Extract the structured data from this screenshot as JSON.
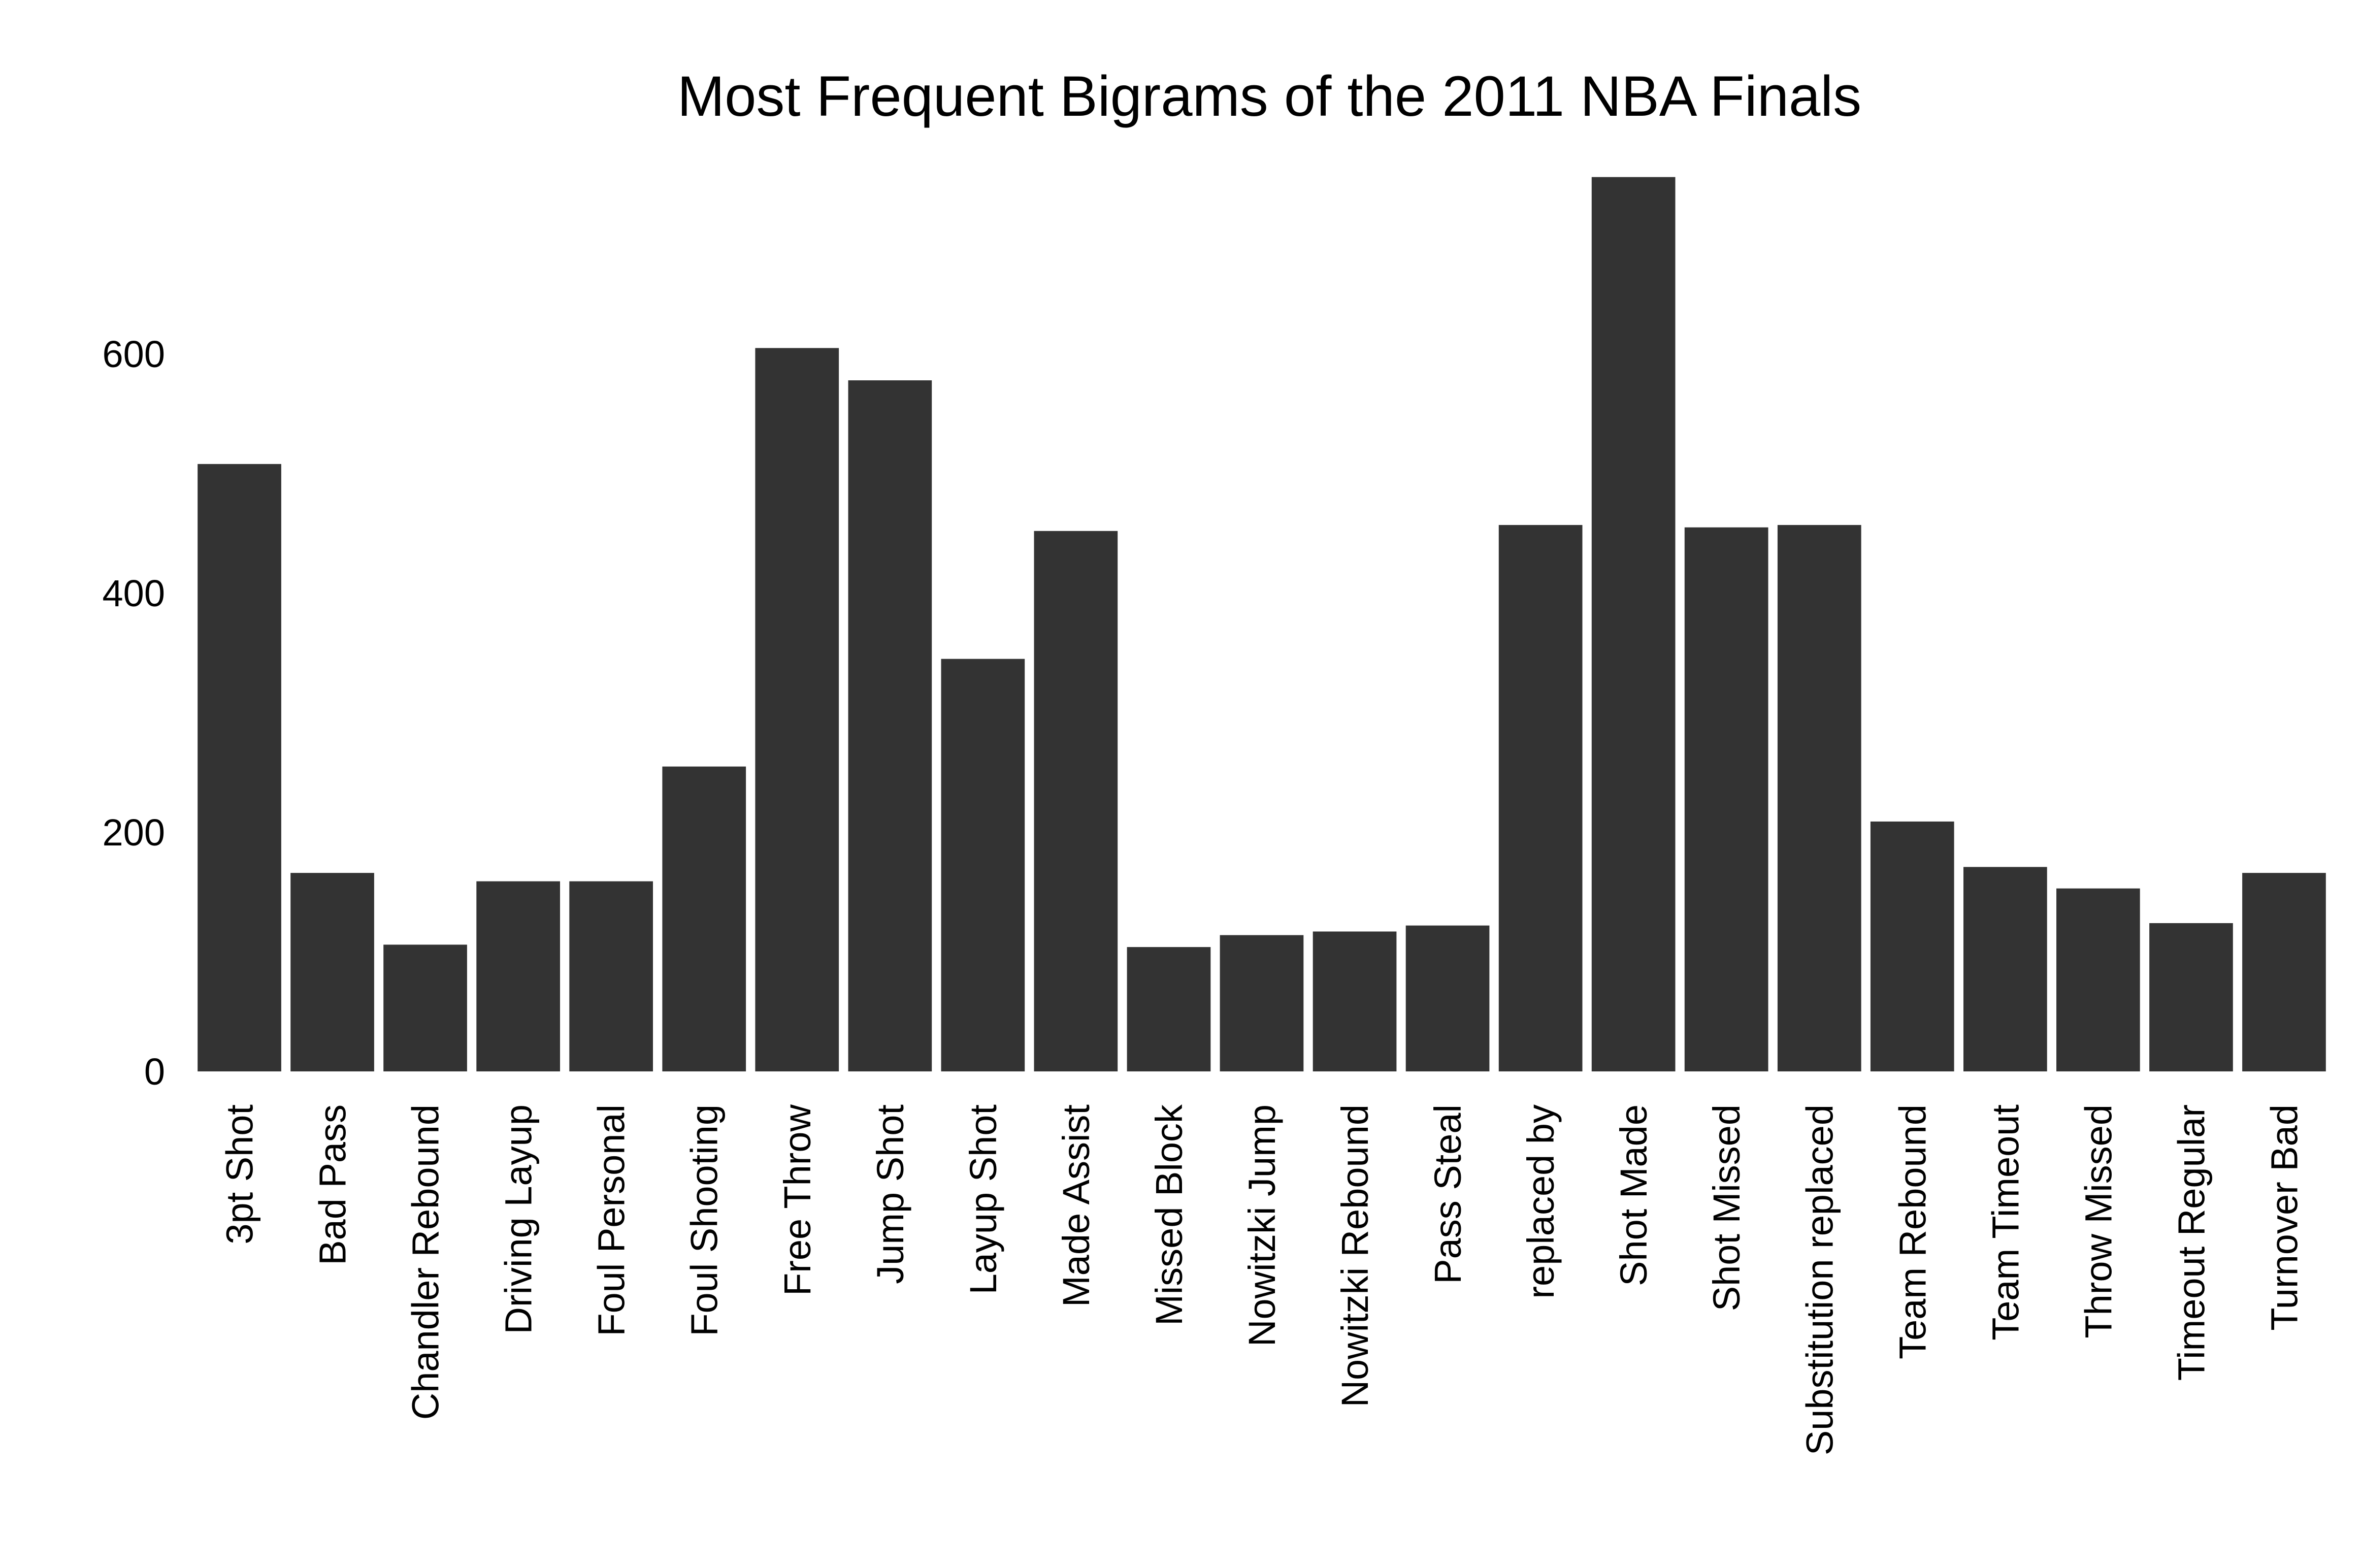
{
  "colors": {
    "background": "#ffffff",
    "bar": "#333333",
    "text": "#000000"
  },
  "chart_data": {
    "type": "bar",
    "title": "Most Frequent Bigrams of the 2011 NBA Finals",
    "xlabel": "",
    "ylabel": "",
    "ylim": [
      0,
      750
    ],
    "yticks": [
      0,
      200,
      400,
      600
    ],
    "grid": false,
    "legend": "none",
    "categories": [
      "3pt Shot",
      "Bad Pass",
      "Chandler Rebound",
      "Driving Layup",
      "Foul Personal",
      "Foul Shooting",
      "Free Throw",
      "Jump Shot",
      "Layup Shot",
      "Made Assist",
      "Missed Block",
      "Nowitzki Jump",
      "Nowitzki Rebound",
      "Pass Steal",
      "replaced by",
      "Shot Made",
      "Shot Missed",
      "Substitution replaced",
      "Team Rebound",
      "Team Timeout",
      "Throw Missed",
      "Timeout Regular",
      "Turnover Bad"
    ],
    "values": [
      508,
      166,
      106,
      159,
      159,
      255,
      605,
      578,
      345,
      452,
      104,
      114,
      117,
      122,
      457,
      748,
      455,
      457,
      209,
      171,
      153,
      124,
      166
    ]
  }
}
